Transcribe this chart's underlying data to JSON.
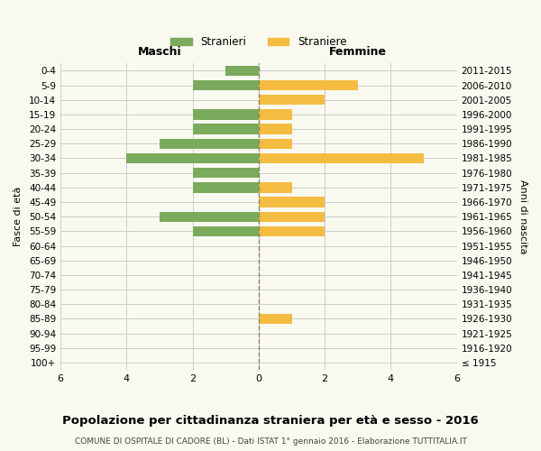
{
  "age_groups": [
    "100+",
    "95-99",
    "90-94",
    "85-89",
    "80-84",
    "75-79",
    "70-74",
    "65-69",
    "60-64",
    "55-59",
    "50-54",
    "45-49",
    "40-44",
    "35-39",
    "30-34",
    "25-29",
    "20-24",
    "15-19",
    "10-14",
    "5-9",
    "0-4"
  ],
  "birth_years": [
    "≤ 1915",
    "1916-1920",
    "1921-1925",
    "1926-1930",
    "1931-1935",
    "1936-1940",
    "1941-1945",
    "1946-1950",
    "1951-1955",
    "1956-1960",
    "1961-1965",
    "1966-1970",
    "1971-1975",
    "1976-1980",
    "1981-1985",
    "1986-1990",
    "1991-1995",
    "1996-2000",
    "2001-2005",
    "2006-2010",
    "2011-2015"
  ],
  "males": [
    0,
    0,
    0,
    0,
    0,
    0,
    0,
    0,
    0,
    2,
    3,
    0,
    2,
    2,
    4,
    3,
    2,
    2,
    0,
    2,
    1
  ],
  "females": [
    0,
    0,
    0,
    1,
    0,
    0,
    0,
    0,
    0,
    2,
    2,
    2,
    1,
    0,
    5,
    1,
    1,
    1,
    2,
    3,
    0
  ],
  "male_color": "#7aaa5c",
  "female_color": "#f5bc42",
  "background_color": "#f9f9f0",
  "grid_color": "#cccccc",
  "center_line_color": "#888866",
  "title": "Popolazione per cittadinanza straniera per età e sesso - 2016",
  "subtitle": "COMUNE DI OSPITALE DI CADORE (BL) - Dati ISTAT 1° gennaio 2016 - Elaborazione TUTTITALIA.IT",
  "xlabel_left": "Maschi",
  "xlabel_right": "Femmine",
  "ylabel_left": "Fasce di età",
  "ylabel_right": "Anni di nascita",
  "legend_male": "Stranieri",
  "legend_female": "Straniere",
  "xlim": 6,
  "xtick_positions": [
    -6,
    -4,
    -2,
    0,
    2,
    4,
    6
  ],
  "xtick_labels": [
    "6",
    "4",
    "2",
    "0",
    "2",
    "4",
    "6"
  ]
}
